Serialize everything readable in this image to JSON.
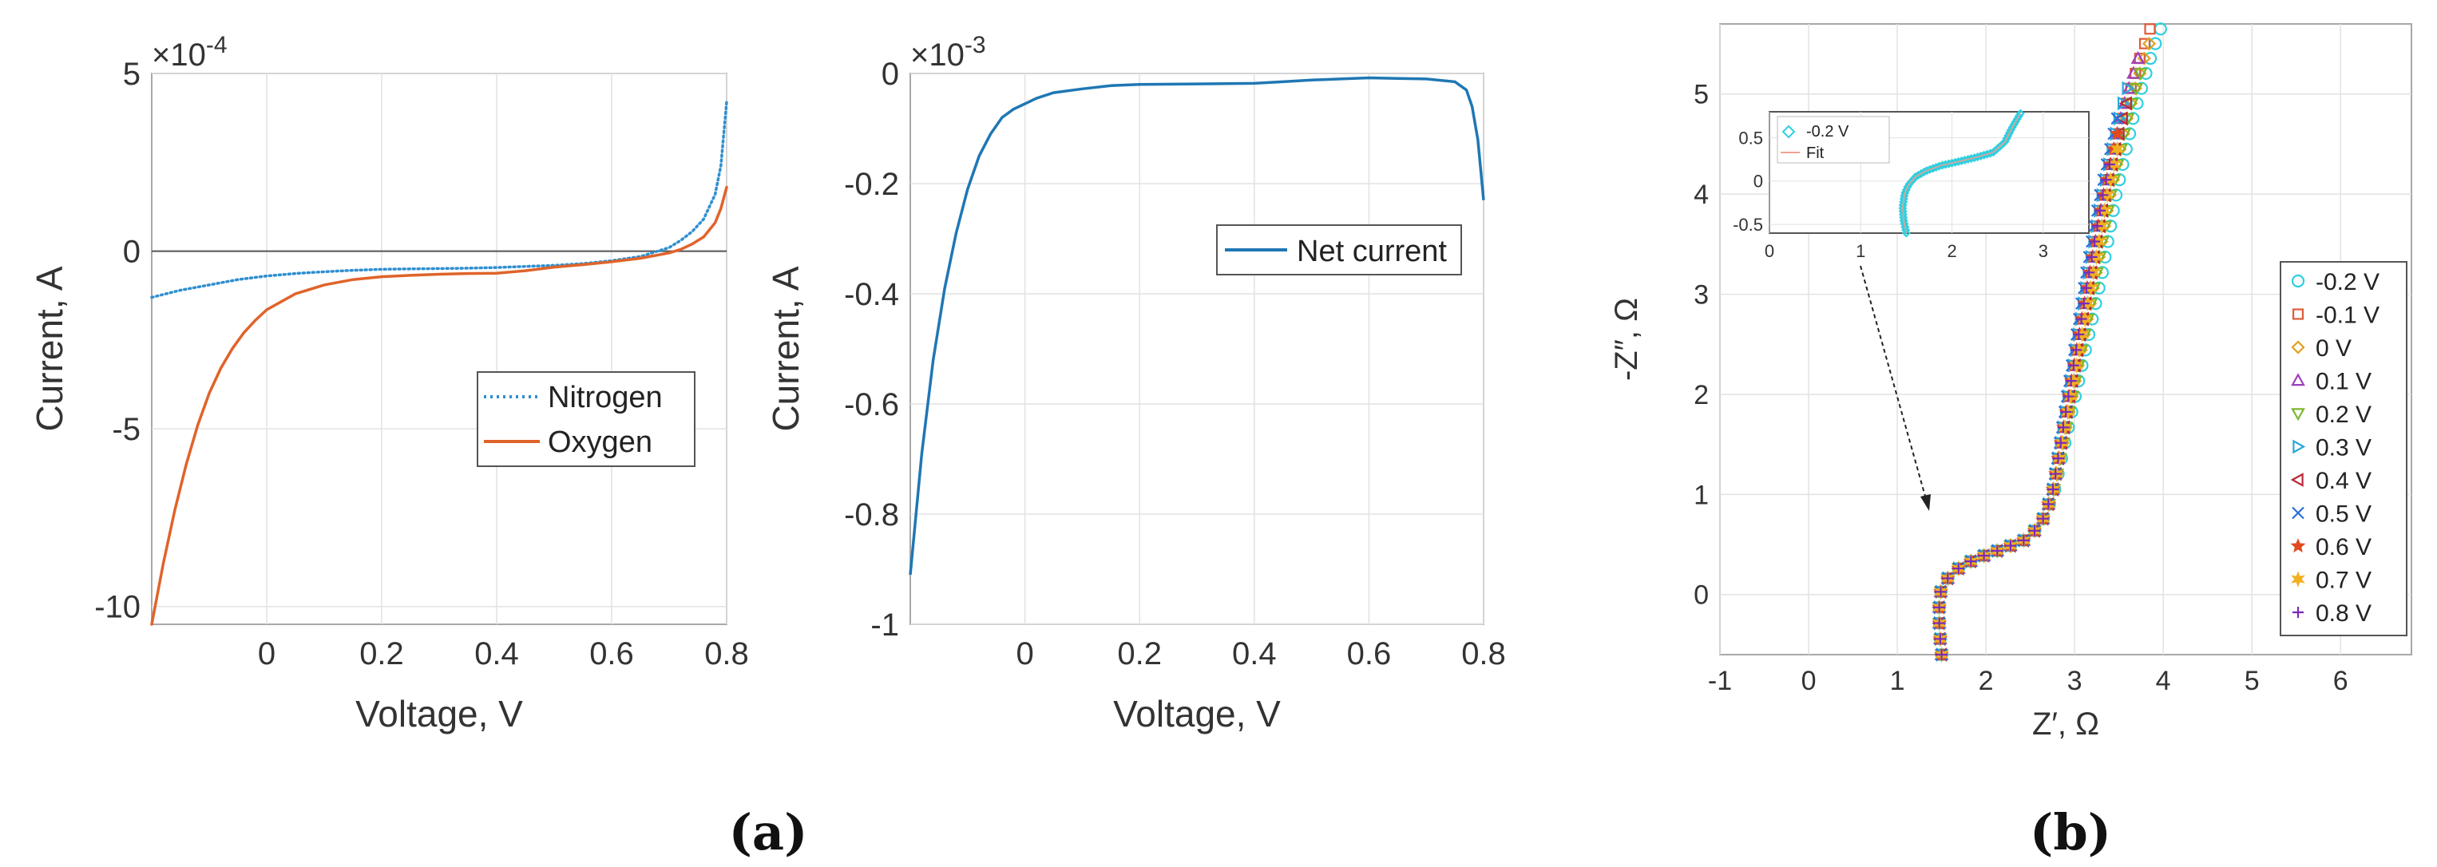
{
  "chart_data": [
    {
      "type": "line",
      "panel": "a-left",
      "xlabel": "Voltage, V",
      "ylabel": "Current, A",
      "exponent_label": "×10",
      "exponent_power": "-4",
      "xlim": [
        -0.2,
        0.8
      ],
      "ylim": [
        -10.5,
        5
      ],
      "xticks": [
        0,
        0.2,
        0.4,
        0.6,
        0.8
      ],
      "xtick_labels": [
        "0",
        "0.2",
        "0.4",
        "0.6",
        "0.8"
      ],
      "yticks": [
        -10,
        -5,
        0,
        5
      ],
      "ytick_labels": [
        "-10",
        "-5",
        "0",
        "5"
      ],
      "zero_line": true,
      "grid": true,
      "legend_position": "center-right",
      "series": [
        {
          "name": "Nitrogen",
          "color": "#2f8fd0",
          "dash": "dotted",
          "x": [
            -0.2,
            -0.15,
            -0.1,
            -0.05,
            0,
            0.05,
            0.1,
            0.15,
            0.2,
            0.25,
            0.3,
            0.35,
            0.4,
            0.45,
            0.5,
            0.55,
            0.6,
            0.65,
            0.7,
            0.72,
            0.74,
            0.76,
            0.78,
            0.79,
            0.8
          ],
          "values": [
            -1.3,
            -1.1,
            -0.95,
            -0.8,
            -0.7,
            -0.63,
            -0.58,
            -0.54,
            -0.51,
            -0.5,
            -0.49,
            -0.48,
            -0.46,
            -0.43,
            -0.4,
            -0.35,
            -0.27,
            -0.15,
            0.1,
            0.3,
            0.55,
            0.9,
            1.6,
            2.4,
            4.2
          ]
        },
        {
          "name": "Oxygen",
          "color": "#e0632a",
          "dash": "solid",
          "x": [
            -0.2,
            -0.18,
            -0.16,
            -0.14,
            -0.12,
            -0.1,
            -0.08,
            -0.06,
            -0.04,
            -0.02,
            0,
            0.05,
            0.1,
            0.15,
            0.2,
            0.25,
            0.3,
            0.35,
            0.4,
            0.45,
            0.5,
            0.55,
            0.6,
            0.65,
            0.7,
            0.72,
            0.74,
            0.76,
            0.78,
            0.79,
            0.8
          ],
          "values": [
            -10.5,
            -8.8,
            -7.3,
            -6.0,
            -4.9,
            -4.0,
            -3.3,
            -2.75,
            -2.3,
            -1.95,
            -1.65,
            -1.2,
            -0.95,
            -0.8,
            -0.72,
            -0.68,
            -0.65,
            -0.63,
            -0.62,
            -0.55,
            -0.45,
            -0.38,
            -0.3,
            -0.2,
            -0.05,
            0.05,
            0.2,
            0.4,
            0.8,
            1.2,
            1.8
          ]
        }
      ]
    },
    {
      "type": "line",
      "panel": "a-right",
      "xlabel": "Voltage, V",
      "ylabel": "Current, A",
      "exponent_label": "×10",
      "exponent_power": "-3",
      "xlim": [
        -0.2,
        0.8
      ],
      "ylim": [
        -1,
        0
      ],
      "xticks": [
        0,
        0.2,
        0.4,
        0.6,
        0.8
      ],
      "xtick_labels": [
        "0",
        "0.2",
        "0.4",
        "0.6",
        "0.8"
      ],
      "yticks": [
        -1,
        -0.8,
        -0.6,
        -0.4,
        -0.2,
        0
      ],
      "ytick_labels": [
        "-1",
        "-0.8",
        "-0.6",
        "-0.4",
        "-0.2",
        "0"
      ],
      "grid": true,
      "legend_position": "top-right",
      "series": [
        {
          "name": "Net current",
          "color": "#1f77b4",
          "dash": "solid",
          "x": [
            -0.2,
            -0.18,
            -0.16,
            -0.14,
            -0.12,
            -0.1,
            -0.08,
            -0.06,
            -0.04,
            -0.02,
            0,
            0.02,
            0.05,
            0.1,
            0.15,
            0.2,
            0.3,
            0.4,
            0.45,
            0.5,
            0.55,
            0.6,
            0.65,
            0.7,
            0.75,
            0.77,
            0.78,
            0.79,
            0.8
          ],
          "values": [
            -0.91,
            -0.69,
            -0.52,
            -0.39,
            -0.29,
            -0.21,
            -0.15,
            -0.11,
            -0.08,
            -0.065,
            -0.055,
            -0.045,
            -0.035,
            -0.028,
            -0.022,
            -0.02,
            -0.019,
            -0.018,
            -0.015,
            -0.012,
            -0.01,
            -0.008,
            -0.009,
            -0.01,
            -0.015,
            -0.03,
            -0.06,
            -0.12,
            -0.23
          ]
        }
      ]
    },
    {
      "type": "scatter",
      "panel": "b",
      "xlabel": "Z′, Ω",
      "ylabel": "-Z″, Ω",
      "xlim": [
        -1,
        6.8
      ],
      "ylim": [
        -0.6,
        5.7
      ],
      "xticks": [
        -1,
        0,
        1,
        2,
        3,
        4,
        5,
        6
      ],
      "xtick_labels": [
        "-1",
        "0",
        "1",
        "2",
        "3",
        "4",
        "5",
        "6"
      ],
      "yticks": [
        0,
        1,
        2,
        3,
        4,
        5
      ],
      "ytick_labels": [
        "0",
        "1",
        "2",
        "3",
        "4",
        "5"
      ],
      "grid": true,
      "legend_position": "right",
      "base_curve": {
        "x": [
          1.5,
          1.48,
          1.47,
          1.48,
          1.52,
          1.6,
          1.75,
          1.95,
          2.2,
          2.45,
          2.62,
          2.75,
          2.85,
          2.95,
          3.05,
          3.15,
          3.25,
          3.35,
          3.45,
          3.55,
          3.65,
          3.75,
          3.85
        ],
        "y": [
          -0.6,
          -0.4,
          -0.2,
          0.0,
          0.1,
          0.2,
          0.3,
          0.38,
          0.46,
          0.55,
          0.7,
          1.0,
          1.5,
          2.0,
          2.5,
          3.0,
          3.5,
          4.0,
          4.4,
          4.8,
          5.1,
          5.4,
          5.65
        ]
      },
      "series": [
        {
          "name": "-0.2 V",
          "color": "#2ecfe0",
          "marker": "circle",
          "dx": 0.12,
          "cut": 0
        },
        {
          "name": "-0.1 V",
          "color": "#e05a3a",
          "marker": "square",
          "dx": 0.0,
          "cut": 0
        },
        {
          "name": "0 V",
          "color": "#e0a020",
          "marker": "diamond",
          "dx": 0.05,
          "cut": 1
        },
        {
          "name": "0.1 V",
          "color": "#9b3fbf",
          "marker": "triangle-up",
          "dx": -0.02,
          "cut": 2
        },
        {
          "name": "0.2 V",
          "color": "#7ab82a",
          "marker": "triangle-down",
          "dx": 0.06,
          "cut": 3
        },
        {
          "name": "0.3 V",
          "color": "#2aa8d8",
          "marker": "triangle-right",
          "dx": -0.04,
          "cut": 4
        },
        {
          "name": "0.4 V",
          "color": "#b8283a",
          "marker": "triangle-left",
          "dx": 0.0,
          "cut": 5
        },
        {
          "name": "0.5 V",
          "color": "#2a6fd8",
          "marker": "x",
          "dx": -0.06,
          "cut": 6
        },
        {
          "name": "0.6 V",
          "color": "#e04a20",
          "marker": "star",
          "dx": -0.02,
          "cut": 7
        },
        {
          "name": "0.7 V",
          "color": "#f0b020",
          "marker": "hexagram",
          "dx": 0.02,
          "cut": 8
        },
        {
          "name": "0.8 V",
          "color": "#7a2ab8",
          "marker": "plus",
          "dx": -0.03,
          "cut": 9
        }
      ],
      "inset": {
        "xlim": [
          0,
          3.5
        ],
        "ylim": [
          -0.6,
          0.8
        ],
        "xticks": [
          0,
          1,
          2,
          3
        ],
        "xtick_labels": [
          "0",
          "1",
          "2",
          "3"
        ],
        "yticks": [
          -0.5,
          0,
          0.5
        ],
        "ytick_labels": [
          "-0.5",
          "0",
          "0.5"
        ],
        "series": [
          {
            "name": "-0.2 V",
            "color": "#2ecfe0",
            "marker": "diamond"
          },
          {
            "name": "Fit",
            "color": "#f0a090",
            "marker": "line"
          }
        ],
        "curve": {
          "x": [
            1.5,
            1.47,
            1.46,
            1.48,
            1.52,
            1.6,
            1.72,
            1.88,
            2.05,
            2.25,
            2.45,
            2.58,
            2.65,
            2.75
          ],
          "y": [
            -0.6,
            -0.45,
            -0.3,
            -0.15,
            -0.05,
            0.05,
            0.12,
            0.18,
            0.22,
            0.27,
            0.33,
            0.45,
            0.6,
            0.78
          ]
        }
      }
    }
  ],
  "panel_labels": {
    "a": "(a)",
    "b": "(b)"
  }
}
